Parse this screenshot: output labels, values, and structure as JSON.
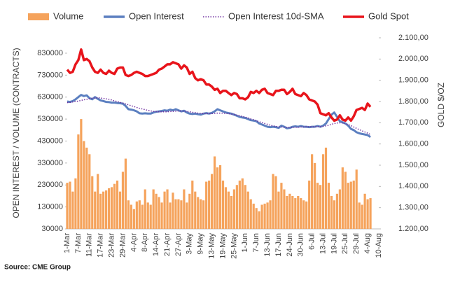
{
  "chart_data": {
    "type": "bar_line_combo",
    "source": "Source: CME Group",
    "ylabel": "OPEN INTEREST / VOLUME (CONTRACTS)",
    "y2label": "GOLD $/OZ",
    "categories": [
      "1-Mar",
      null,
      null,
      null,
      "7-Mar",
      null,
      null,
      null,
      "11-Mar",
      null,
      null,
      null,
      "17-Mar",
      null,
      null,
      null,
      "23-Mar",
      null,
      null,
      null,
      "29-Mar",
      null,
      null,
      null,
      "4-Apr",
      null,
      null,
      null,
      "8-Apr",
      null,
      null,
      null,
      "14-Apr",
      null,
      null,
      null,
      "21-Apr",
      null,
      null,
      null,
      "27-Apr",
      null,
      null,
      null,
      "3-May",
      null,
      null,
      null,
      "9-May",
      null,
      null,
      null,
      "13-May",
      null,
      null,
      null,
      "19-May",
      null,
      null,
      null,
      "25-May",
      null,
      null,
      null,
      "1-Jun",
      null,
      null,
      null,
      "7-Jun",
      null,
      null,
      null,
      "13-Jun",
      null,
      null,
      null,
      "17-Jun",
      null,
      null,
      null,
      "24-Jun",
      null,
      null,
      null,
      "30-Jun",
      null,
      null,
      null,
      "6-Jul",
      null,
      null,
      null,
      "13-Jul",
      null,
      null,
      null,
      "19-Jul",
      null,
      null,
      null,
      "25-Jul",
      null,
      null,
      null,
      "29-Jul",
      null,
      null,
      null,
      "4-Aug",
      null,
      null,
      null,
      "10-Aug"
    ],
    "ylim": [
      30000,
      900000
    ],
    "yticks": [
      30000,
      130000,
      230000,
      330000,
      430000,
      530000,
      630000,
      730000,
      830000
    ],
    "y2lim": [
      1200,
      2100
    ],
    "y2ticks": [
      {
        "value": 1200,
        "label": "1.200,00"
      },
      {
        "value": 1300,
        "label": "1.300,00"
      },
      {
        "value": 1400,
        "label": "1.400,00"
      },
      {
        "value": 1500,
        "label": "1.500,00"
      },
      {
        "value": 1600,
        "label": "1.600,00"
      },
      {
        "value": 1700,
        "label": "1.700,00"
      },
      {
        "value": 1800,
        "label": "1.800,00"
      },
      {
        "value": 1900,
        "label": "1.900,00"
      },
      {
        "value": 2000,
        "label": "2.000,00"
      },
      {
        "value": 2100,
        "label": "2.100,00"
      }
    ],
    "series": [
      {
        "name": "Volume",
        "type": "bar",
        "color": "#f5a35c",
        "values": [
          240000,
          245000,
          200000,
          260000,
          460000,
          530000,
          430000,
          400000,
          370000,
          270000,
          200000,
          280000,
          190000,
          200000,
          205000,
          215000,
          220000,
          235000,
          250000,
          200000,
          290000,
          350000,
          160000,
          140000,
          120000,
          155000,
          160000,
          140000,
          210000,
          150000,
          140000,
          210000,
          190000,
          175000,
          150000,
          200000,
          210000,
          150000,
          195000,
          165000,
          165000,
          160000,
          210000,
          150000,
          190000,
          250000,
          200000,
          175000,
          165000,
          160000,
          245000,
          250000,
          280000,
          360000,
          310000,
          320000,
          250000,
          220000,
          200000,
          180000,
          210000,
          230000,
          250000,
          260000,
          230000,
          200000,
          165000,
          145000,
          125000,
          110000,
          140000,
          145000,
          150000,
          160000,
          280000,
          270000,
          200000,
          240000,
          210000,
          180000,
          190000,
          180000,
          170000,
          180000,
          170000,
          160000,
          155000,
          250000,
          370000,
          330000,
          240000,
          230000,
          370000,
          400000,
          240000,
          180000,
          160000,
          190000,
          210000,
          310000,
          290000,
          240000,
          245000,
          250000,
          300000,
          150000,
          140000,
          190000,
          165000,
          170000,
          null,
          null,
          null
        ]
      },
      {
        "name": "Open Interest",
        "type": "line",
        "color": "#5b7fc0",
        "values": [
          610000,
          608000,
          612000,
          620000,
          630000,
          640000,
          635000,
          638000,
          625000,
          620000,
          630000,
          622000,
          615000,
          612000,
          608000,
          607000,
          605000,
          605000,
          603000,
          602000,
          600000,
          590000,
          575000,
          573000,
          570000,
          565000,
          556000,
          555000,
          556000,
          555000,
          555000,
          560000,
          563000,
          565000,
          567000,
          570000,
          568000,
          573000,
          570000,
          575000,
          570000,
          565000,
          568000,
          560000,
          555000,
          553000,
          555000,
          552000,
          550000,
          555000,
          557000,
          555000,
          558000,
          565000,
          575000,
          570000,
          565000,
          560000,
          557000,
          555000,
          550000,
          545000,
          540000,
          537000,
          535000,
          530000,
          525000,
          523000,
          520000,
          510000,
          505000,
          500000,
          495000,
          493000,
          495000,
          493000,
          490000,
          500000,
          495000,
          488000,
          490000,
          495000,
          497000,
          495000,
          498000,
          495000,
          495000,
          493000,
          495000,
          495000,
          498000,
          495000,
          500000,
          510000,
          530000,
          550000,
          560000,
          540000,
          520000,
          515000,
          510000,
          500000,
          485000,
          480000,
          470000,
          465000,
          462000,
          460000,
          457000,
          448000,
          null,
          null,
          null
        ]
      },
      {
        "name": "Open Interest 10d-SMA",
        "type": "dotted",
        "color": "#7030a0",
        "values": [
          605000,
          606000,
          608000,
          610000,
          612000,
          615000,
          618000,
          620000,
          623000,
          625000,
          626000,
          627000,
          626000,
          624000,
          622000,
          620000,
          617000,
          613000,
          610000,
          606000,
          603000,
          599000,
          595000,
          591000,
          587000,
          583000,
          579000,
          576000,
          573000,
          570000,
          567000,
          565000,
          564000,
          563000,
          563000,
          563000,
          563000,
          564000,
          565000,
          566000,
          567000,
          567000,
          566000,
          565000,
          563000,
          561000,
          559000,
          557000,
          556000,
          555000,
          555000,
          555000,
          555000,
          556000,
          557000,
          557000,
          557000,
          556000,
          555000,
          553000,
          551000,
          548000,
          545000,
          542000,
          539000,
          535000,
          531000,
          527000,
          522000,
          518000,
          514000,
          510000,
          506000,
          502000,
          499000,
          497000,
          495000,
          494000,
          493000,
          492000,
          492000,
          492000,
          493000,
          493000,
          494000,
          494000,
          495000,
          495000,
          495000,
          495000,
          496000,
          496000,
          497000,
          499000,
          502000,
          506000,
          510000,
          512000,
          513000,
          512000,
          510000,
          505000,
          500000,
          494000,
          488000,
          482000,
          476000,
          471000,
          466000,
          460000,
          null,
          null,
          null
        ]
      },
      {
        "name": "Gold Spot",
        "type": "line",
        "axis": "y2",
        "color": "#e8141b",
        "values": [
          1950,
          1935,
          1940,
          1975,
          1995,
          2045,
          1995,
          2000,
          1990,
          1960,
          1940,
          1935,
          1950,
          1935,
          1930,
          1945,
          1935,
          1930,
          1955,
          1960,
          1960,
          1925,
          1920,
          1925,
          1935,
          1940,
          1935,
          1930,
          1920,
          1920,
          1925,
          1930,
          1935,
          1950,
          1955,
          1965,
          1975,
          1975,
          1985,
          1980,
          1975,
          1955,
          1970,
          1960,
          1930,
          1940,
          1910,
          1900,
          1905,
          1900,
          1880,
          1880,
          1870,
          1855,
          1860,
          1840,
          1850,
          1850,
          1840,
          1830,
          1840,
          1835,
          1815,
          1815,
          1810,
          1820,
          1845,
          1840,
          1850,
          1840,
          1855,
          1860,
          1840,
          1835,
          1830,
          1850,
          1850,
          1855,
          1855,
          1835,
          1845,
          1860,
          1835,
          1830,
          1825,
          1840,
          1830,
          1810,
          1805,
          1800,
          1785,
          1745,
          1740,
          1735,
          1745,
          1725,
          1710,
          1715,
          1735,
          1715,
          1710,
          1725,
          1710,
          1730,
          1760,
          1765,
          1770,
          1760,
          1790,
          1775,
          null,
          null,
          null
        ]
      }
    ]
  }
}
